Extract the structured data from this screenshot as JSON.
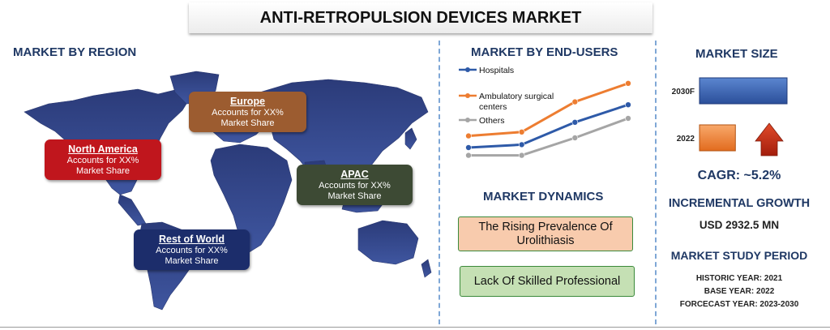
{
  "title": "ANTI-RETROPULSION DEVICES MARKET",
  "region": {
    "heading": "MARKET BY REGION",
    "boxes": [
      {
        "name": "North America",
        "line1": "Accounts for XX%",
        "line2": "Market Share",
        "color": "#c0161d"
      },
      {
        "name": "Europe",
        "line1": "Accounts for XX%",
        "line2": "Market Share",
        "color": "#9c5c30"
      },
      {
        "name": "APAC",
        "line1": "Accounts for XX%",
        "line2": "Market Share",
        "color": "#3d4a34"
      },
      {
        "name": "Rest of World",
        "line1": "Accounts for XX%",
        "line2": "Market Share",
        "color": "#1c2d6b"
      }
    ]
  },
  "endusers": {
    "heading": "MARKET BY END-USERS",
    "legend": [
      {
        "label": "Hospitals",
        "color": "#2e5aa8"
      },
      {
        "label": "Ambulatory surgical centers",
        "color": "#ed7d31"
      },
      {
        "label": "Others",
        "color": "#a5a5a5"
      }
    ]
  },
  "dynamics": {
    "heading": "MARKET DYNAMICS",
    "driver": "The Rising Prevalence Of Urolithiasis",
    "restraint": "Lack Of Skilled Professional",
    "driver_color": "#f8cbad",
    "restraint_color": "#c5e0b4"
  },
  "size": {
    "heading": "MARKET SIZE",
    "cagr": "CAGR:  ~5.2%",
    "incremental_heading": "INCREMENTAL GROWTH",
    "incremental_value": "USD 2932.5 MN",
    "study_heading": "MARKET STUDY PERIOD",
    "historic": "HISTORIC YEAR: 2021",
    "base": "BASE YEAR: 2022",
    "forecast": "FORCECAST YEAR: 2023-2030"
  },
  "chart_data": [
    {
      "type": "line",
      "title": "MARKET BY END-USERS",
      "x": [
        1,
        2,
        3,
        4
      ],
      "ylim": [
        0,
        10
      ],
      "grid": false,
      "legend": "top-left",
      "series": [
        {
          "name": "Hospitals",
          "values": [
            2.0,
            2.3,
            4.6,
            6.4
          ],
          "color": "#2e5aa8"
        },
        {
          "name": "Ambulatory surgical centers",
          "values": [
            3.2,
            3.6,
            6.7,
            8.6
          ],
          "color": "#ed7d31"
        },
        {
          "name": "Others",
          "values": [
            1.2,
            1.2,
            3.0,
            5.0
          ],
          "color": "#a5a5a5"
        }
      ]
    },
    {
      "type": "bar",
      "title": "MARKET SIZE",
      "orientation": "horizontal",
      "categories": [
        "2030F",
        "2022"
      ],
      "values": [
        100,
        41
      ],
      "colors": [
        "#2e5aa8",
        "#ed7d31"
      ],
      "xlim": [
        0,
        100
      ]
    }
  ]
}
